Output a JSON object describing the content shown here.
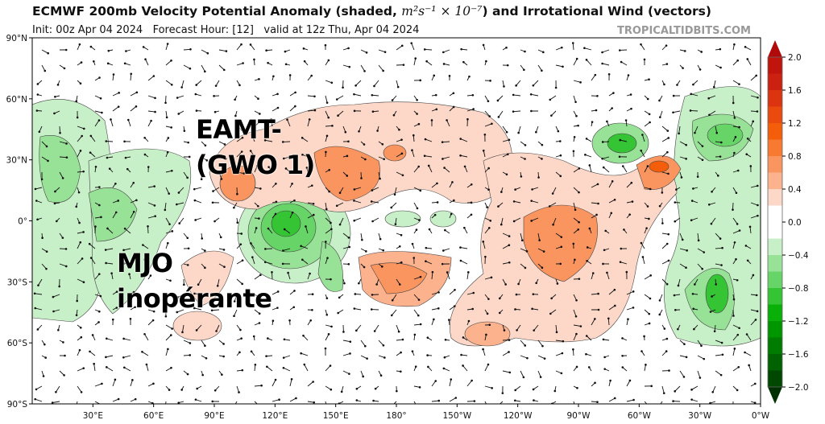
{
  "title": {
    "main": "ECMWF 200mb Velocity Potential Anomaly (shaded, ",
    "units": "m²s⁻¹ × 10⁻⁷",
    "tail": ") and Irrotational Wind (vectors)"
  },
  "subtitle": "Init: 00z Apr 04 2024   Forecast Hour: [12]   valid at 12z Thu, Apr 04 2024",
  "brand": "TROPICALTIDBITS.COM",
  "lat_labels": [
    "90°N",
    "60°N",
    "30°N",
    "0°",
    "30°S",
    "60°S",
    "90°S"
  ],
  "lon_labels": [
    "30°E",
    "60°E",
    "90°E",
    "120°E",
    "150°E",
    "180°",
    "150°W",
    "120°W",
    "90°W",
    "60°W",
    "30°W",
    "0°W"
  ],
  "colorbar": {
    "tick_labels": [
      "2.0",
      "1.6",
      "1.2",
      "0.8",
      "0.4",
      "0.0",
      "−0.4",
      "−0.8",
      "−1.2",
      "−1.6",
      "−2.0"
    ],
    "colors": [
      "#b00a0a",
      "#c0140c",
      "#cc2010",
      "#dc3410",
      "#ea4a0e",
      "#f45e0a",
      "#f87a30",
      "#fb9560",
      "#fdb28e",
      "#fdd8c8",
      "#ffffff",
      "#ffffff",
      "#c8f0c8",
      "#98e298",
      "#66d466",
      "#34c434",
      "#08b008",
      "#009600",
      "#007c00",
      "#006200",
      "#004800",
      "#003000"
    ]
  },
  "annotations": {
    "eamt_line1": "EAMT-",
    "eamt_line2": "(GWO 1)",
    "mjo_line1": "MJO",
    "mjo_line2": "inopérante"
  }
}
